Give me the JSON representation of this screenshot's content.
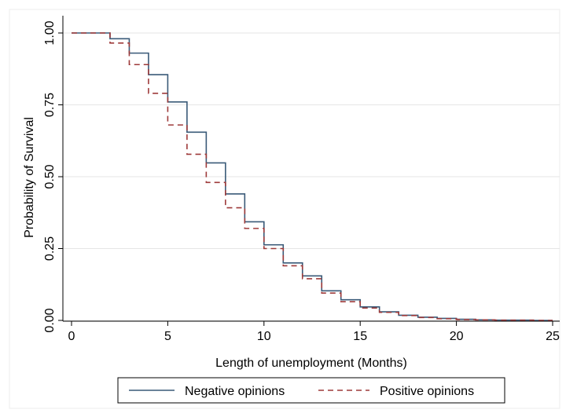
{
  "chart_data": {
    "type": "line",
    "step": true,
    "title": "",
    "xlabel": "Length of unemployment (Months)",
    "ylabel": "Probability of Survival",
    "xlim": [
      0,
      25
    ],
    "ylim": [
      0,
      1
    ],
    "xticks": [
      0,
      5,
      10,
      15,
      20,
      25
    ],
    "yticks": [
      0,
      0.25,
      0.5,
      0.75,
      1
    ],
    "ytick_labels": [
      "0.00",
      "0.25",
      "0.50",
      "0.75",
      "1.00"
    ],
    "grid": true,
    "legend": "bottom",
    "x": [
      0,
      1,
      2,
      3,
      4,
      5,
      6,
      7,
      8,
      9,
      10,
      11,
      12,
      13,
      14,
      15,
      16,
      17,
      18,
      19,
      20,
      21,
      22,
      23,
      24,
      25
    ],
    "series": [
      {
        "name": "Negative opinions",
        "color": "#3a5a78",
        "dash": "solid",
        "values": [
          1.0,
          1.0,
          0.98,
          0.93,
          0.855,
          0.76,
          0.655,
          0.548,
          0.44,
          0.343,
          0.263,
          0.2,
          0.155,
          0.103,
          0.072,
          0.047,
          0.03,
          0.018,
          0.011,
          0.007,
          0.004,
          0.002,
          0.001,
          0.001,
          0.0,
          0.0
        ]
      },
      {
        "name": "Positive opinions",
        "color": "#9e3a3a",
        "dash": "dashed",
        "values": [
          1.0,
          1.0,
          0.965,
          0.89,
          0.79,
          0.68,
          0.578,
          0.48,
          0.392,
          0.32,
          0.25,
          0.19,
          0.145,
          0.095,
          0.065,
          0.043,
          0.028,
          0.017,
          0.01,
          0.006,
          0.003,
          0.002,
          0.001,
          0.001,
          0.0,
          0.0
        ]
      }
    ]
  }
}
